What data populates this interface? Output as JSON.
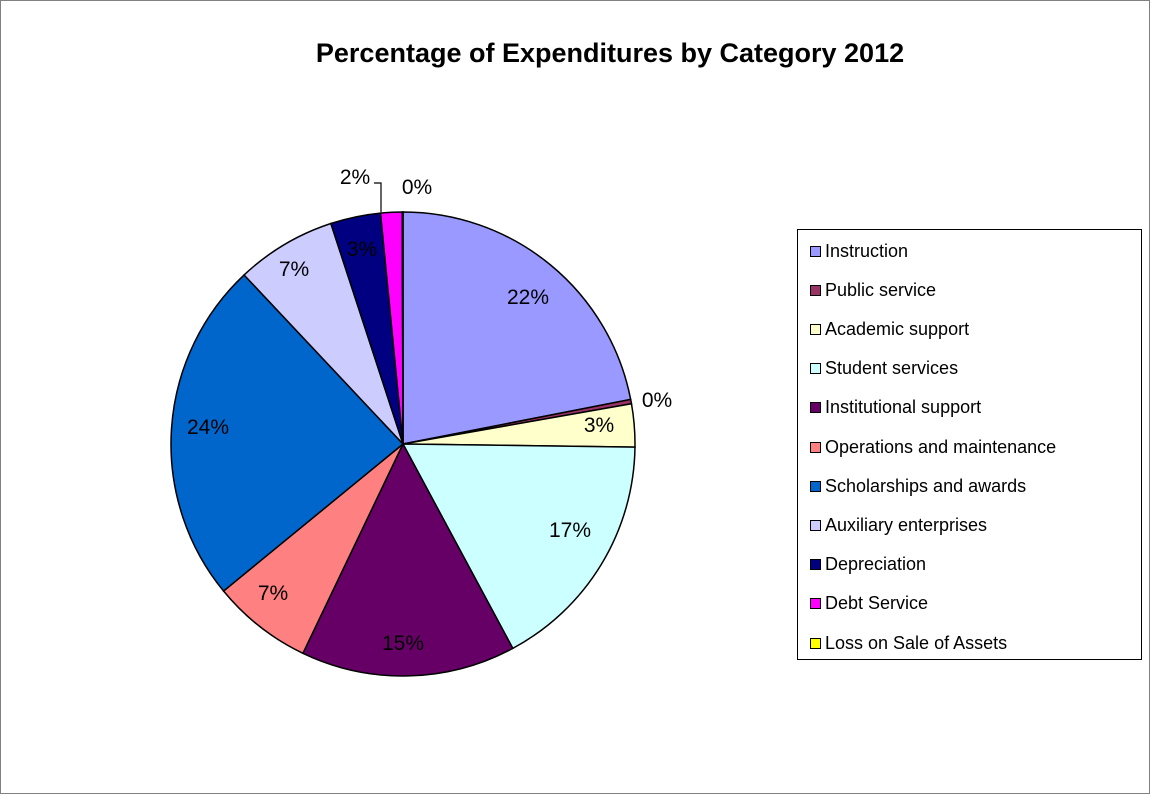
{
  "chart_data": {
    "type": "pie",
    "title": "Percentage of Expenditures by Category 2012",
    "slices": [
      {
        "name": "Instruction",
        "value": 22,
        "label": "22%",
        "color": "#9999ff"
      },
      {
        "name": "Public service",
        "value": 0.3,
        "label": "0%",
        "color": "#993366"
      },
      {
        "name": "Academic support",
        "value": 3,
        "label": "3%",
        "color": "#ffffcc"
      },
      {
        "name": "Student services",
        "value": 17,
        "label": "17%",
        "color": "#ccffff"
      },
      {
        "name": "Institutional support",
        "value": 15,
        "label": "15%",
        "color": "#660066"
      },
      {
        "name": "Operations and maintenance",
        "value": 7,
        "label": "7%",
        "color": "#ff8080"
      },
      {
        "name": "Scholarships and awards",
        "value": 24,
        "label": "24%",
        "color": "#0066cc"
      },
      {
        "name": "Auxiliary enterprises",
        "value": 7,
        "label": "7%",
        "color": "#ccccff"
      },
      {
        "name": "Depreciation",
        "value": 3.5,
        "label": "3%",
        "color": "#000080"
      },
      {
        "name": "Debt Service",
        "value": 1.5,
        "label": "2%",
        "color": "#ff00ff"
      },
      {
        "name": "Loss on Sale of Assets",
        "value": 0.05,
        "label": "0%",
        "color": "#ffff00"
      }
    ],
    "legend_position": "right"
  }
}
